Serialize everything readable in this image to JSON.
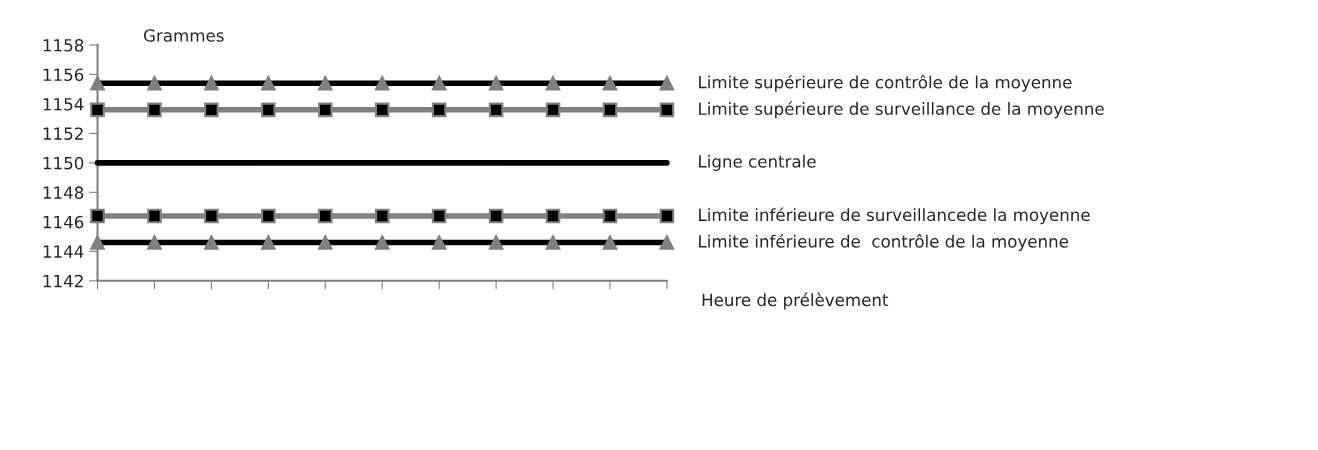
{
  "chart_data": {
    "type": "line",
    "ylabel": "Grammes",
    "xlabel": "Heure de prélèvement",
    "categories": [
      null,
      null,
      null,
      null,
      null,
      null,
      null,
      null,
      null,
      null,
      null
    ],
    "series": [
      {
        "name": "Limite supérieure de contrôle de la moyenne",
        "color": "#000000",
        "marker": "triangle",
        "values": [
          1155.4,
          1155.4,
          1155.4,
          1155.4,
          1155.4,
          1155.4,
          1155.4,
          1155.4,
          1155.4,
          1155.4,
          1155.4
        ]
      },
      {
        "name": "Limite supérieure de surveillance de la moyenne",
        "color": "#808080",
        "marker": "square",
        "values": [
          1153.6,
          1153.6,
          1153.6,
          1153.6,
          1153.6,
          1153.6,
          1153.6,
          1153.6,
          1153.6,
          1153.6,
          1153.6
        ]
      },
      {
        "name": "Ligne centrale",
        "color": "#000000",
        "marker": "none",
        "values": [
          1150,
          1150,
          1150,
          1150,
          1150,
          1150,
          1150,
          1150,
          1150,
          1150,
          1150
        ]
      },
      {
        "name": "Limite inférieure de surveillancede la moyenne",
        "color": "#808080",
        "marker": "square",
        "values": [
          1146.4,
          1146.4,
          1146.4,
          1146.4,
          1146.4,
          1146.4,
          1146.4,
          1146.4,
          1146.4,
          1146.4,
          1146.4
        ]
      },
      {
        "name": "Limite inférieure de  contrôle de la moyenne",
        "color": "#000000",
        "marker": "triangle",
        "values": [
          1144.6,
          1144.6,
          1144.6,
          1144.6,
          1144.6,
          1144.6,
          1144.6,
          1144.6,
          1144.6,
          1144.6,
          1144.6
        ]
      }
    ],
    "ylim": [
      1142,
      1158
    ],
    "yticks": [
      1142,
      1144,
      1146,
      1148,
      1150,
      1152,
      1154,
      1156,
      1158
    ],
    "grid": false,
    "legend": false,
    "tick_labels": "y"
  }
}
